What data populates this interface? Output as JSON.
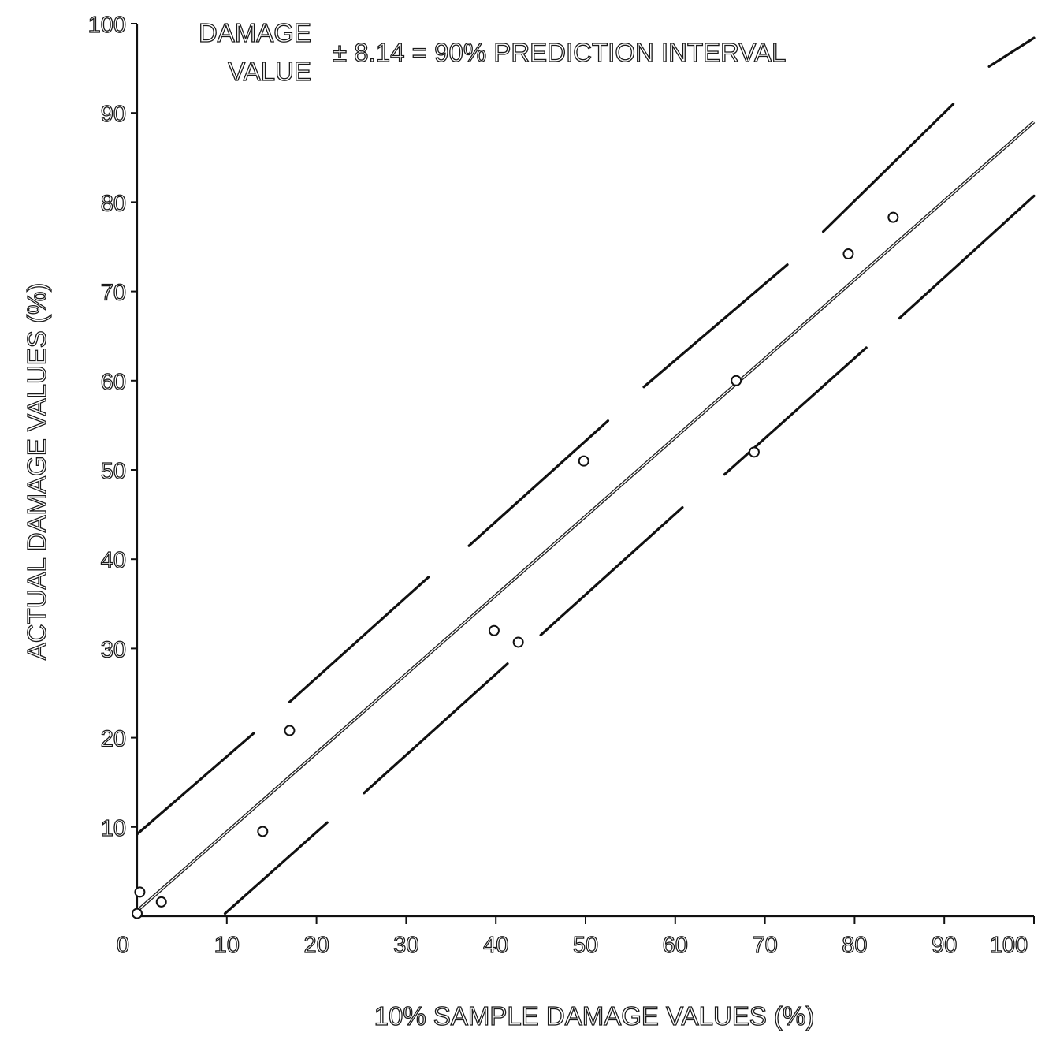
{
  "chart_data": {
    "type": "scatter",
    "title": "",
    "xlabel": "10% SAMPLE DAMAGE VALUES (%)",
    "ylabel": "ACTUAL DAMAGE VALUES (%)",
    "xlim": [
      0,
      100
    ],
    "ylim": [
      0,
      100
    ],
    "xticks": [
      0,
      10,
      20,
      30,
      40,
      50,
      60,
      70,
      80,
      90,
      100
    ],
    "yticks": [
      10,
      20,
      30,
      40,
      50,
      60,
      70,
      80,
      90,
      100
    ],
    "xtick_labels": [
      "0",
      "10",
      "20",
      "30",
      "40",
      "50",
      "60",
      "70",
      "80",
      "90",
      "100"
    ],
    "ytick_labels": [
      "10",
      "20",
      "30",
      "40",
      "50",
      "60",
      "70",
      "80",
      "90",
      "100"
    ],
    "grid": false,
    "annotation": {
      "line1": "DAMAGE",
      "line2": "VALUE",
      "rest": "± 8.14 = 90% PREDICTION INTERVAL"
    },
    "points": [
      {
        "x": 0.3,
        "y": 2.7
      },
      {
        "x": 0.0,
        "y": 0.3
      },
      {
        "x": 2.7,
        "y": 1.6
      },
      {
        "x": 14.0,
        "y": 9.5
      },
      {
        "x": 17.0,
        "y": 20.8
      },
      {
        "x": 39.8,
        "y": 32.0
      },
      {
        "x": 42.5,
        "y": 30.7
      },
      {
        "x": 49.8,
        "y": 51.0
      },
      {
        "x": 66.8,
        "y": 60.0
      },
      {
        "x": 68.8,
        "y": 52.0
      },
      {
        "x": 79.3,
        "y": 74.2
      },
      {
        "x": 84.3,
        "y": 78.3
      }
    ],
    "regression_line": {
      "slope": 0.884,
      "intercept": 0.6,
      "x_range": [
        0,
        100
      ]
    },
    "prediction_interval": {
      "half_width": 8.14,
      "upper_segments": [
        [
          0,
          9.2,
          13,
          20.5
        ],
        [
          17,
          24,
          32.5,
          38
        ],
        [
          37,
          41.5,
          52.5,
          55.5
        ],
        [
          56.5,
          59.3,
          72.5,
          73
        ],
        [
          76.5,
          76.7,
          91,
          91
        ],
        [
          95,
          95.2,
          100,
          98.4
        ]
      ],
      "lower_segments": [
        [
          9.8,
          0.3,
          21.2,
          10.5
        ],
        [
          25.3,
          13.8,
          41.3,
          28.3
        ],
        [
          45,
          31.5,
          60.8,
          45.8
        ],
        [
          65.5,
          49.5,
          81.3,
          63.7
        ],
        [
          85,
          67,
          100,
          80.7
        ]
      ]
    }
  }
}
